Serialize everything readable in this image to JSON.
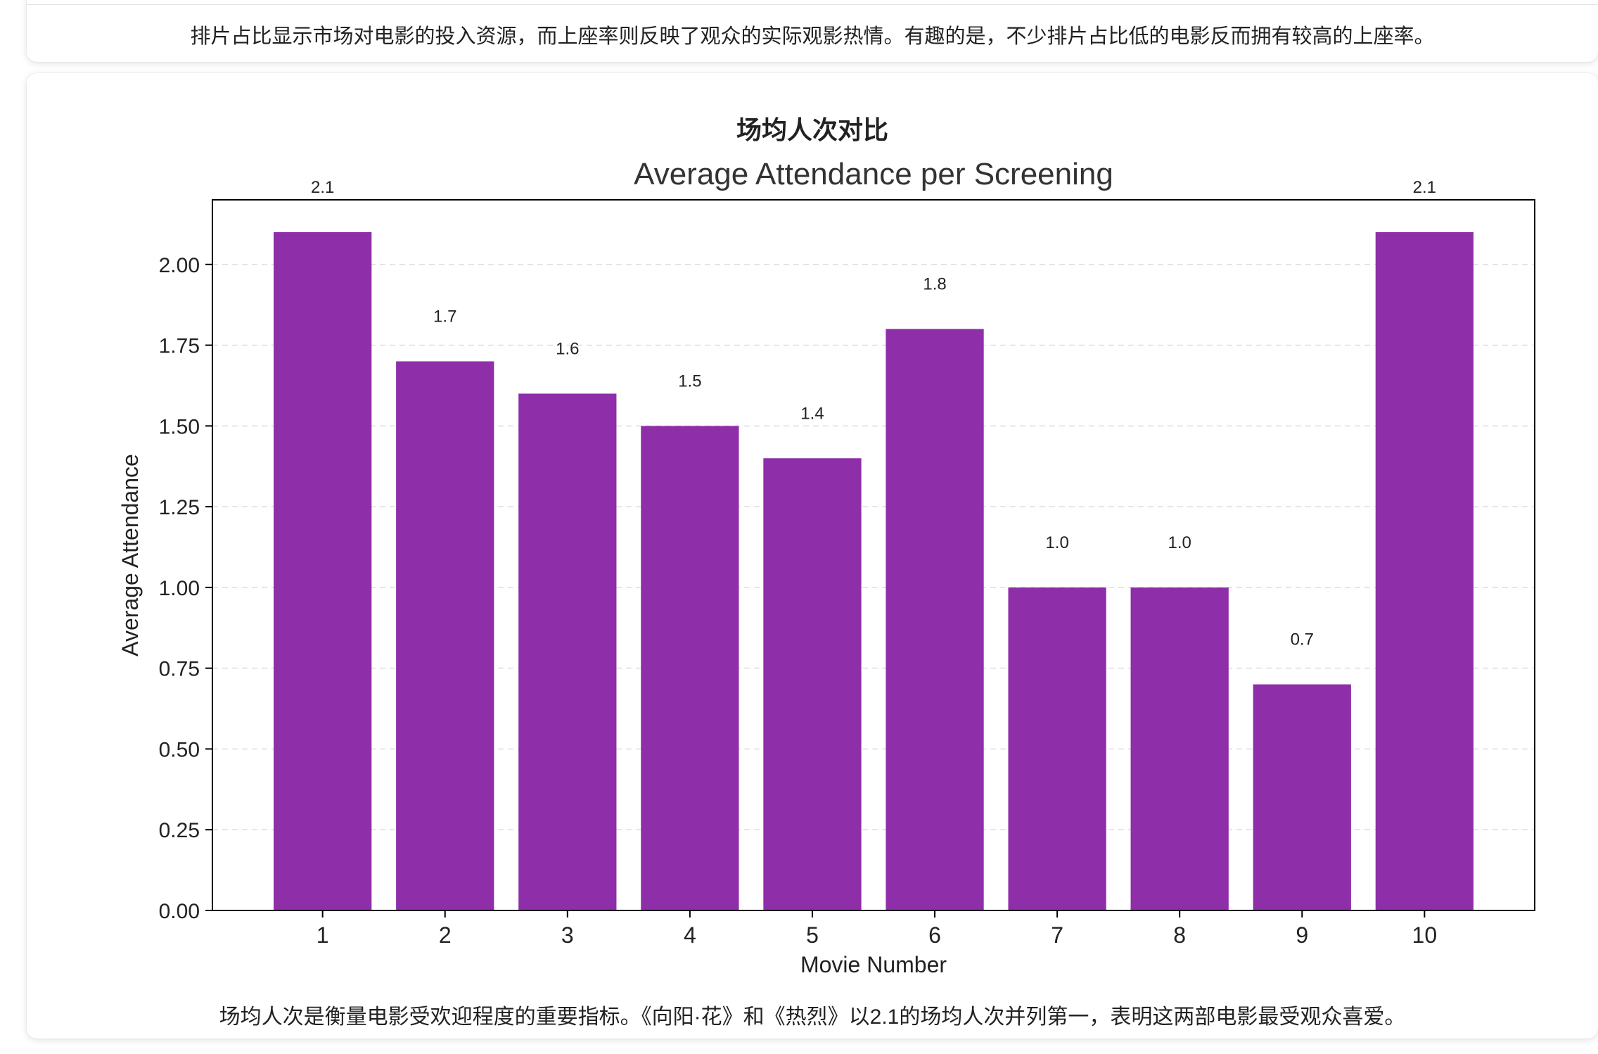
{
  "top_card": {
    "description": "排片占比显示市场对电影的投入资源，而上座率则反映了观众的实际观影热情。有趣的是，不少排片占比低的电影反而拥有较高的上座率。"
  },
  "chart_card": {
    "heading": "场均人次对比",
    "caption": "场均人次是衡量电影受欢迎程度的重要指标。《向阳·花》和《热烈》以2.1的场均人次并列第一，表明这两部电影最受观众喜爱。"
  },
  "colors": {
    "bar": "#8e2ea8",
    "axis": "#000000",
    "grid": "#dddddd",
    "text": "#222222"
  },
  "chart_data": {
    "type": "bar",
    "title": "Average Attendance per Screening",
    "xlabel": "Movie Number",
    "ylabel": "Average Attendance",
    "categories": [
      "1",
      "2",
      "3",
      "4",
      "5",
      "6",
      "7",
      "8",
      "9",
      "10"
    ],
    "values": [
      2.1,
      1.7,
      1.6,
      1.5,
      1.4,
      1.8,
      1.0,
      1.0,
      0.7,
      2.1
    ],
    "data_labels": [
      "2.1",
      "1.7",
      "1.6",
      "1.5",
      "1.4",
      "1.8",
      "1.0",
      "1.0",
      "0.7",
      "2.1"
    ],
    "ylim": [
      0,
      2.2
    ],
    "yticks": [
      0,
      0.25,
      0.5,
      0.75,
      1.0,
      1.25,
      1.5,
      1.75,
      2.0
    ],
    "ytick_labels": [
      "0.00",
      "0.25",
      "0.50",
      "0.75",
      "1.00",
      "1.25",
      "1.50",
      "1.75",
      "2.00"
    ],
    "grid": "y-dashed",
    "legend": "none"
  }
}
